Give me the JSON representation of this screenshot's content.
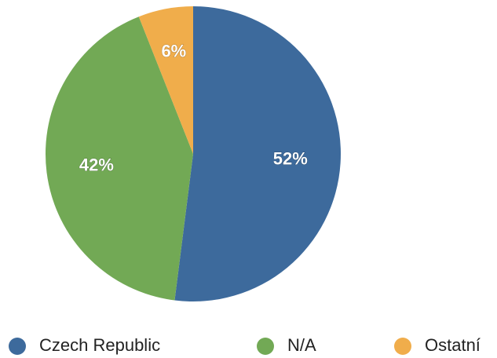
{
  "chart_data": {
    "type": "pie",
    "categories": [
      "Czech Republic",
      "N/A",
      "Ostatní"
    ],
    "values": [
      52,
      42,
      6
    ],
    "value_labels": [
      "52%",
      "42%",
      "6%"
    ],
    "colors": [
      "#3d6a9c",
      "#72a955",
      "#f0ad4b"
    ],
    "legend": "bottom"
  }
}
